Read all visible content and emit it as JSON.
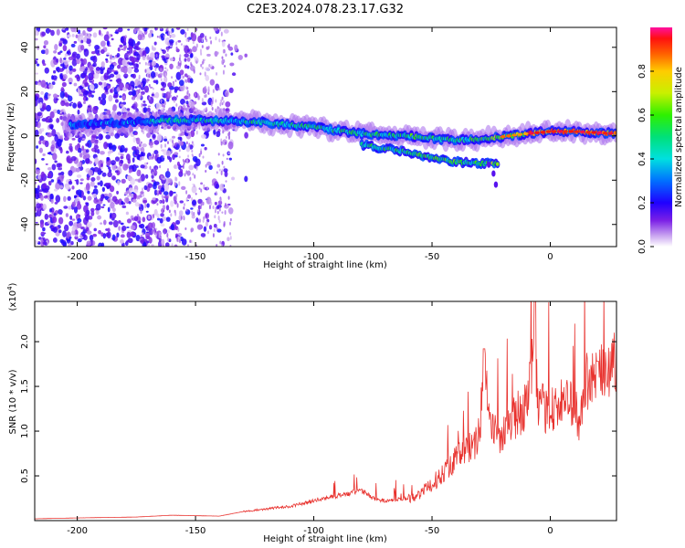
{
  "title": "C2E3.2024.078.23.17.G32",
  "chart_data": [
    {
      "type": "heatmap",
      "xlabel": "Height of straight line (km)",
      "ylabel": "Frequency (Hz)",
      "xlim": [
        -218,
        28
      ],
      "ylim": [
        -50,
        49
      ],
      "xticks": [
        -200,
        -150,
        -100,
        -50,
        0
      ],
      "yticks": [
        -40,
        -20,
        0,
        20,
        40
      ],
      "xtick_labels": [
        "-200",
        "-150",
        "-100",
        "-50",
        "0"
      ],
      "ytick_labels": [
        "-40",
        "-20",
        "0",
        "20",
        "40"
      ],
      "ridge": {
        "x": [
          -200,
          -180,
          -160,
          -140,
          -120,
          -100,
          -80,
          -60,
          -40,
          -25,
          -10,
          0,
          10,
          28
        ],
        "y": [
          5,
          6,
          7,
          7,
          6,
          4,
          1,
          0,
          -2,
          -1,
          1,
          2,
          2,
          1
        ]
      },
      "colorbar": {
        "label": "Normalized spectral amplitude",
        "range": [
          0.0,
          1.0
        ],
        "ticks": [
          0.0,
          0.2,
          0.4,
          0.6,
          0.8
        ],
        "tick_labels": [
          "0.0",
          "0.2",
          "0.4",
          "0.6",
          "0.8"
        ],
        "colormap": "rainbow"
      }
    },
    {
      "type": "line",
      "xlabel": "Height of straight line (km)",
      "ylabel": "SNR (10 * v/v)",
      "exponent_label": "(x10",
      "exponent_power": "4",
      "exponent_close": ")",
      "xlim": [
        -218,
        28
      ],
      "ylim": [
        0,
        2.45
      ],
      "xticks": [
        -200,
        -150,
        -100,
        -50,
        0
      ],
      "yticks": [
        0.5,
        1.0,
        1.5,
        2.0
      ],
      "xtick_labels": [
        "-200",
        "-150",
        "-100",
        "-50",
        "0"
      ],
      "ytick_labels": [
        "0.5",
        "1.0",
        "1.5",
        "2.0"
      ],
      "color": "#e8322e",
      "x": [
        -218,
        -200,
        -175,
        -160,
        -140,
        -130,
        -120,
        -110,
        -100,
        -90,
        -85,
        -80,
        -75,
        -70,
        -60,
        -55,
        -50,
        -45,
        -40,
        -35,
        -30,
        -28,
        -25,
        -20,
        -15,
        -10,
        -7,
        -5,
        0,
        5,
        10,
        12,
        15,
        20,
        25,
        28
      ],
      "y": [
        0.02,
        0.03,
        0.04,
        0.06,
        0.05,
        0.1,
        0.13,
        0.16,
        0.22,
        0.28,
        0.3,
        0.34,
        0.25,
        0.22,
        0.25,
        0.3,
        0.4,
        0.55,
        0.7,
        0.8,
        0.9,
        1.9,
        1.0,
        0.95,
        1.15,
        1.3,
        1.9,
        1.25,
        1.25,
        1.3,
        1.35,
        1.05,
        1.55,
        1.6,
        1.7,
        1.8
      ]
    }
  ]
}
